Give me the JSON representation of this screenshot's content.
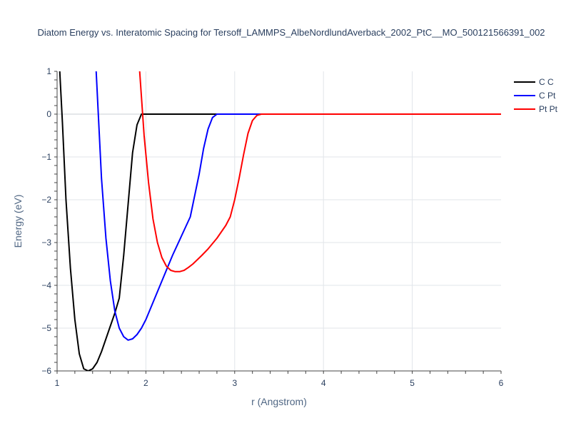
{
  "chart_data": {
    "type": "line",
    "title": "Diatom Energy vs. Interatomic Spacing for Tersoff_LAMMPS_AlbeNordlundAverback_2002_PtC__MO_500121566391_002",
    "xlabel": "r (Angstrom)",
    "ylabel": "Energy (eV)",
    "xlim": [
      1,
      6
    ],
    "ylim": [
      -6,
      1
    ],
    "xticks": [
      "1",
      "2",
      "3",
      "4",
      "5",
      "6"
    ],
    "yticks": [
      "1",
      "0",
      "−1",
      "−2",
      "−3",
      "−4",
      "−5",
      "−6"
    ],
    "grid": true,
    "legend_position": "top-right",
    "series": [
      {
        "name": "C C",
        "color": "#000000",
        "x": [
          1.03,
          1.06,
          1.1,
          1.15,
          1.2,
          1.25,
          1.3,
          1.35,
          1.4,
          1.45,
          1.5,
          1.55,
          1.6,
          1.65,
          1.7,
          1.75,
          1.8,
          1.85,
          1.9,
          1.95,
          2.0,
          2.05,
          2.5,
          3.0,
          4.0,
          5.0,
          6.0
        ],
        "y": [
          1.0,
          -0.2,
          -2.0,
          -3.6,
          -4.8,
          -5.6,
          -5.95,
          -6.0,
          -5.95,
          -5.8,
          -5.55,
          -5.25,
          -4.95,
          -4.65,
          -4.3,
          -3.3,
          -2.1,
          -0.9,
          -0.25,
          0.0,
          0.0,
          0.0,
          0.0,
          0.0,
          0.0,
          0.0,
          0.0
        ]
      },
      {
        "name": "C Pt",
        "color": "#0000ff",
        "x": [
          1.44,
          1.5,
          1.55,
          1.6,
          1.65,
          1.7,
          1.75,
          1.8,
          1.85,
          1.9,
          1.95,
          2.0,
          2.1,
          2.2,
          2.3,
          2.4,
          2.5,
          2.6,
          2.65,
          2.7,
          2.75,
          2.8,
          2.85,
          3.0,
          4.0,
          5.0,
          6.0
        ],
        "y": [
          1.0,
          -1.5,
          -2.9,
          -3.9,
          -4.6,
          -5.0,
          -5.2,
          -5.28,
          -5.25,
          -5.15,
          -5.0,
          -4.8,
          -4.3,
          -3.8,
          -3.3,
          -2.85,
          -2.4,
          -1.4,
          -0.8,
          -0.35,
          -0.08,
          0.0,
          0.0,
          0.0,
          0.0,
          0.0,
          0.0
        ]
      },
      {
        "name": "Pt Pt",
        "color": "#ff0000",
        "x": [
          1.93,
          1.98,
          2.03,
          2.08,
          2.13,
          2.18,
          2.23,
          2.28,
          2.33,
          2.38,
          2.43,
          2.48,
          2.53,
          2.58,
          2.63,
          2.7,
          2.8,
          2.9,
          2.95,
          3.0,
          3.05,
          3.1,
          3.15,
          3.2,
          3.25,
          3.3,
          3.35,
          4.0,
          5.0,
          6.0
        ],
        "y": [
          1.0,
          -0.5,
          -1.6,
          -2.45,
          -3.0,
          -3.35,
          -3.55,
          -3.65,
          -3.68,
          -3.68,
          -3.65,
          -3.58,
          -3.5,
          -3.4,
          -3.3,
          -3.15,
          -2.9,
          -2.6,
          -2.4,
          -2.0,
          -1.5,
          -0.95,
          -0.45,
          -0.15,
          -0.03,
          0.0,
          0.0,
          0.0,
          0.0,
          0.0
        ]
      }
    ]
  }
}
